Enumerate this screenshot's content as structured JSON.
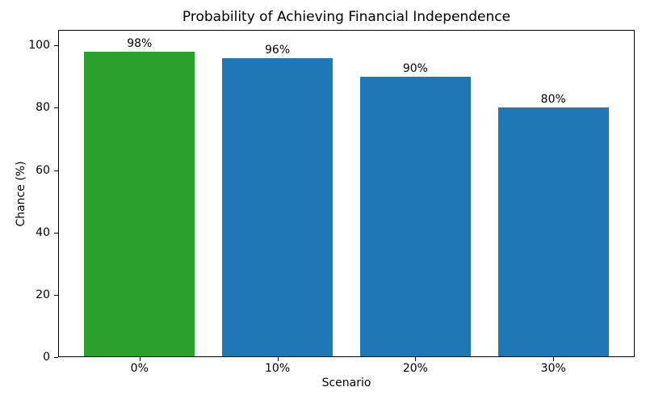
{
  "chart_data": {
    "type": "bar",
    "title": "Probability of Achieving Financial Independence",
    "xlabel": "Scenario",
    "ylabel": "Chance (%)",
    "categories": [
      "0%",
      "10%",
      "20%",
      "30%"
    ],
    "values": [
      98,
      96,
      90,
      80
    ],
    "bar_labels": [
      "98%",
      "96%",
      "90%",
      "80%"
    ],
    "bar_colors": [
      "#2ca02c",
      "#1f77b4",
      "#1f77b4",
      "#1f77b4"
    ],
    "yticks": [
      0,
      20,
      40,
      60,
      80,
      100
    ],
    "ylim": [
      0,
      105
    ],
    "grid": false,
    "legend": null,
    "background_color": "#ffffff",
    "axis_color": "#000000"
  }
}
